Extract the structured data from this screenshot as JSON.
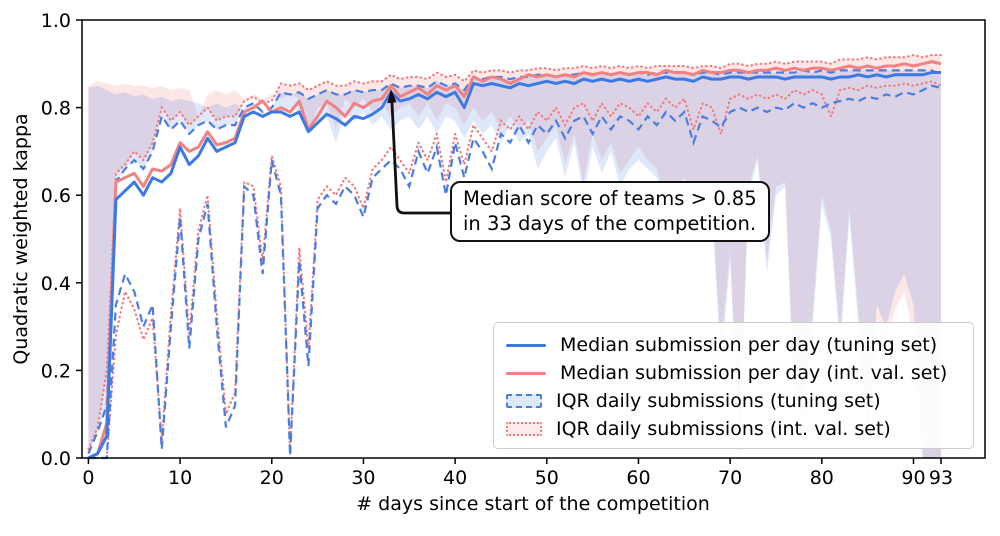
{
  "axes": {
    "x": {
      "label": "# days since start of the competition",
      "ticks": [
        0,
        10,
        20,
        30,
        40,
        50,
        60,
        70,
        80,
        90,
        93
      ],
      "min": -0.7,
      "max": 97.8
    },
    "y": {
      "label": "Quadratic weighted kappa",
      "tick_values": [
        0,
        0.2,
        0.4,
        0.6,
        0.8,
        1.0
      ],
      "tick_labels": [
        "0.0",
        "0.2",
        "0.4",
        "0.6",
        "0.8",
        "1.0"
      ],
      "min": 0,
      "max": 1
    }
  },
  "colors": {
    "blue_line": "#3d79e3",
    "red_line": "#f28181",
    "blue_band_line": "#4a7de2",
    "red_band_line": "#f4797c",
    "blue_fill": "#4a7de2",
    "red_fill": "#f08080",
    "frame": "#000000"
  },
  "legend": {
    "position": "lower right",
    "items": [
      {
        "label": "Median submission per day (tuning set)"
      },
      {
        "label": "Median submission per day (int. val. set)"
      },
      {
        "label": "IQR daily submissions (tuning set)"
      },
      {
        "label": "IQR daily submissions (int. val. set)"
      }
    ]
  },
  "annotation": {
    "line1": "Median score of teams > 0.85",
    "line2": "in 33 days of the competition.",
    "target_day": 33,
    "target_value": 0.85
  },
  "chart_data": {
    "type": "line",
    "title": "",
    "xlabel": "# days since start of the competition",
    "ylabel": "Quadratic weighted kappa",
    "xlim": [
      -0.7,
      97.8
    ],
    "ylim": [
      0,
      1
    ],
    "grid": false,
    "x": [
      0,
      1,
      2,
      3,
      4,
      5,
      6,
      7,
      8,
      9,
      10,
      11,
      12,
      13,
      14,
      15,
      16,
      17,
      18,
      19,
      20,
      21,
      22,
      23,
      24,
      25,
      26,
      27,
      28,
      29,
      30,
      31,
      32,
      33,
      34,
      35,
      36,
      37,
      38,
      39,
      40,
      41,
      42,
      43,
      44,
      45,
      46,
      47,
      48,
      49,
      50,
      51,
      52,
      53,
      54,
      55,
      56,
      57,
      58,
      59,
      60,
      61,
      62,
      63,
      64,
      65,
      66,
      67,
      68,
      69,
      70,
      71,
      72,
      73,
      74,
      75,
      76,
      77,
      78,
      79,
      80,
      81,
      82,
      83,
      84,
      85,
      86,
      87,
      88,
      89,
      90,
      91,
      92,
      93
    ],
    "series": [
      {
        "name": "Median submission per day (tuning set)",
        "style": "solid",
        "values": [
          0.0,
          0.01,
          0.05,
          0.59,
          0.61,
          0.63,
          0.6,
          0.64,
          0.63,
          0.65,
          0.71,
          0.67,
          0.69,
          0.73,
          0.7,
          0.71,
          0.72,
          0.78,
          0.79,
          0.78,
          0.79,
          0.79,
          0.78,
          0.79,
          0.745,
          0.765,
          0.785,
          0.775,
          0.76,
          0.78,
          0.775,
          0.785,
          0.8,
          0.835,
          0.815,
          0.82,
          0.83,
          0.82,
          0.835,
          0.825,
          0.835,
          0.8,
          0.855,
          0.85,
          0.855,
          0.85,
          0.845,
          0.855,
          0.85,
          0.855,
          0.86,
          0.855,
          0.86,
          0.855,
          0.865,
          0.86,
          0.865,
          0.86,
          0.865,
          0.86,
          0.865,
          0.86,
          0.865,
          0.87,
          0.865,
          0.865,
          0.86,
          0.87,
          0.865,
          0.865,
          0.87,
          0.87,
          0.865,
          0.87,
          0.87,
          0.87,
          0.865,
          0.87,
          0.87,
          0.87,
          0.87,
          0.865,
          0.87,
          0.87,
          0.875,
          0.87,
          0.875,
          0.87,
          0.875,
          0.875,
          0.875,
          0.875,
          0.88,
          0.88
        ]
      },
      {
        "name": "Median submission per day (int. val. set)",
        "style": "solid",
        "values": [
          0.0,
          0.01,
          0.08,
          0.63,
          0.64,
          0.65,
          0.62,
          0.66,
          0.655,
          0.67,
          0.72,
          0.7,
          0.71,
          0.745,
          0.715,
          0.72,
          0.73,
          0.79,
          0.8,
          0.815,
          0.79,
          0.8,
          0.79,
          0.815,
          0.75,
          0.78,
          0.815,
          0.8,
          0.78,
          0.81,
          0.8,
          0.815,
          0.82,
          0.85,
          0.825,
          0.835,
          0.845,
          0.83,
          0.85,
          0.84,
          0.85,
          0.825,
          0.87,
          0.86,
          0.87,
          0.865,
          0.855,
          0.865,
          0.875,
          0.87,
          0.875,
          0.87,
          0.875,
          0.87,
          0.88,
          0.875,
          0.88,
          0.875,
          0.88,
          0.875,
          0.88,
          0.88,
          0.875,
          0.885,
          0.88,
          0.88,
          0.875,
          0.885,
          0.88,
          0.88,
          0.885,
          0.885,
          0.88,
          0.885,
          0.885,
          0.89,
          0.885,
          0.89,
          0.885,
          0.89,
          0.89,
          0.885,
          0.89,
          0.895,
          0.89,
          0.895,
          0.89,
          0.895,
          0.895,
          0.9,
          0.895,
          0.9,
          0.905,
          0.9
        ]
      }
    ],
    "bands": [
      {
        "name": "IQR daily submissions (tuning set)",
        "line_style": "dashed",
        "fill_opacity": 0.18,
        "lower": [
          0.0,
          0.0,
          0.0,
          0.35,
          0.42,
          0.38,
          0.3,
          0.35,
          0.02,
          0.3,
          0.55,
          0.25,
          0.5,
          0.58,
          0.3,
          0.07,
          0.12,
          0.62,
          0.6,
          0.42,
          0.68,
          0.6,
          0.005,
          0.45,
          0.21,
          0.57,
          0.6,
          0.58,
          0.62,
          0.6,
          0.55,
          0.64,
          0.66,
          0.68,
          0.66,
          0.62,
          0.7,
          0.65,
          0.71,
          0.6,
          0.72,
          0.64,
          0.73,
          0.7,
          0.66,
          0.74,
          0.72,
          0.76,
          0.72,
          0.76,
          0.74,
          0.77,
          0.73,
          0.77,
          0.78,
          0.74,
          0.78,
          0.75,
          0.78,
          0.77,
          0.75,
          0.78,
          0.76,
          0.79,
          0.77,
          0.79,
          0.72,
          0.78,
          0.77,
          0.755,
          0.79,
          0.8,
          0.79,
          0.8,
          0.79,
          0.8,
          0.795,
          0.81,
          0.8,
          0.81,
          0.8,
          0.81,
          0.815,
          0.82,
          0.815,
          0.825,
          0.82,
          0.83,
          0.825,
          0.835,
          0.83,
          0.84,
          0.85,
          0.845
        ],
        "upper": [
          0.01,
          0.06,
          0.12,
          0.63,
          0.66,
          0.68,
          0.66,
          0.7,
          0.78,
          0.75,
          0.77,
          0.74,
          0.76,
          0.77,
          0.75,
          0.76,
          0.76,
          0.8,
          0.81,
          0.79,
          0.8,
          0.835,
          0.83,
          0.835,
          0.82,
          0.83,
          0.84,
          0.83,
          0.83,
          0.84,
          0.835,
          0.84,
          0.84,
          0.855,
          0.845,
          0.85,
          0.85,
          0.845,
          0.86,
          0.85,
          0.855,
          0.84,
          0.87,
          0.865,
          0.87,
          0.87,
          0.865,
          0.87,
          0.87,
          0.875,
          0.875,
          0.87,
          0.875,
          0.875,
          0.88,
          0.875,
          0.88,
          0.875,
          0.88,
          0.875,
          0.88,
          0.875,
          0.88,
          0.88,
          0.88,
          0.88,
          0.875,
          0.88,
          0.88,
          0.875,
          0.88,
          0.88,
          0.88,
          0.88,
          0.88,
          0.88,
          0.88,
          0.88,
          0.885,
          0.88,
          0.885,
          0.88,
          0.885,
          0.885,
          0.885,
          0.885,
          0.885,
          0.885,
          0.885,
          0.885,
          0.885,
          0.885,
          0.885,
          0.875
        ]
      },
      {
        "name": "IQR daily submissions (int. val. set)",
        "line_style": "dotted",
        "fill_opacity": 0.2,
        "lower": [
          0.0,
          0.0,
          0.0,
          0.28,
          0.38,
          0.34,
          0.27,
          0.32,
          0.04,
          0.33,
          0.57,
          0.28,
          0.52,
          0.6,
          0.33,
          0.1,
          0.15,
          0.63,
          0.62,
          0.45,
          0.69,
          0.62,
          0.01,
          0.48,
          0.25,
          0.59,
          0.62,
          0.6,
          0.64,
          0.62,
          0.57,
          0.66,
          0.68,
          0.71,
          0.68,
          0.65,
          0.72,
          0.68,
          0.74,
          0.63,
          0.74,
          0.67,
          0.76,
          0.73,
          0.7,
          0.77,
          0.75,
          0.78,
          0.75,
          0.79,
          0.77,
          0.8,
          0.76,
          0.8,
          0.81,
          0.77,
          0.81,
          0.78,
          0.81,
          0.8,
          0.78,
          0.81,
          0.79,
          0.82,
          0.8,
          0.82,
          0.75,
          0.81,
          0.8,
          0.74,
          0.82,
          0.83,
          0.82,
          0.83,
          0.82,
          0.83,
          0.82,
          0.84,
          0.83,
          0.84,
          0.83,
          0.78,
          0.84,
          0.845,
          0.84,
          0.85,
          0.845,
          0.85,
          0.85,
          0.855,
          0.85,
          0.855,
          0.86,
          0.85
        ],
        "upper": [
          0.02,
          0.07,
          0.2,
          0.65,
          0.67,
          0.7,
          0.68,
          0.72,
          0.8,
          0.77,
          0.79,
          0.76,
          0.78,
          0.8,
          0.77,
          0.78,
          0.78,
          0.815,
          0.825,
          0.81,
          0.815,
          0.855,
          0.85,
          0.855,
          0.84,
          0.85,
          0.86,
          0.85,
          0.85,
          0.86,
          0.855,
          0.86,
          0.86,
          0.875,
          0.865,
          0.87,
          0.87,
          0.865,
          0.88,
          0.87,
          0.875,
          0.86,
          0.885,
          0.88,
          0.885,
          0.885,
          0.88,
          0.885,
          0.885,
          0.89,
          0.89,
          0.885,
          0.89,
          0.89,
          0.895,
          0.89,
          0.895,
          0.89,
          0.895,
          0.89,
          0.895,
          0.89,
          0.895,
          0.895,
          0.895,
          0.895,
          0.89,
          0.895,
          0.895,
          0.89,
          0.9,
          0.9,
          0.895,
          0.9,
          0.9,
          0.905,
          0.9,
          0.905,
          0.905,
          0.905,
          0.905,
          0.9,
          0.91,
          0.91,
          0.91,
          0.915,
          0.91,
          0.915,
          0.915,
          0.915,
          0.92,
          0.915,
          0.92,
          0.92
        ]
      }
    ]
  }
}
